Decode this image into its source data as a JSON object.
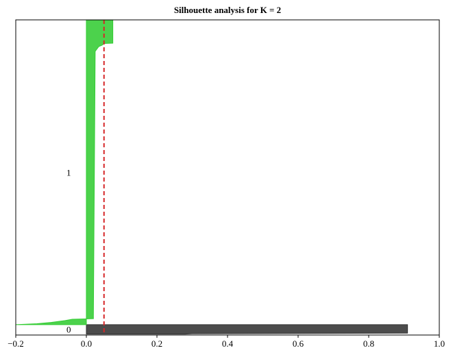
{
  "chart_data": {
    "type": "area",
    "title": "Silhouette analysis for K = 2",
    "xlabel": "",
    "ylabel": "",
    "xlim": [
      -0.2,
      1.0
    ],
    "xticks": [
      "−0.2",
      "0.0",
      "0.2",
      "0.4",
      "0.6",
      "0.8",
      "1.0"
    ],
    "xtick_values": [
      -0.2,
      0.0,
      0.2,
      0.4,
      0.6,
      0.8,
      1.0
    ],
    "ylim": [
      0,
      1000
    ],
    "grid": false,
    "average_silhouette_score": 0.05,
    "average_line_color": "#d62728",
    "average_line_style": "dashed",
    "clusters": [
      {
        "label": "0",
        "color": "#333333",
        "y_range": [
          3,
          33
        ],
        "profile": [
          {
            "y": 3,
            "x": 0.28
          },
          {
            "y": 4,
            "x": 0.3
          },
          {
            "y": 6,
            "x": 0.91
          },
          {
            "y": 33,
            "x": 0.91
          }
        ]
      },
      {
        "label": "1",
        "color": "#33cc33",
        "y_range": [
          33,
          1000
        ],
        "profile": [
          {
            "y": 33,
            "x": -0.2
          },
          {
            "y": 36,
            "x": -0.14
          },
          {
            "y": 40,
            "x": -0.1
          },
          {
            "y": 46,
            "x": -0.06
          },
          {
            "y": 50,
            "x": -0.04
          },
          {
            "y": 52,
            "x": 0.02
          },
          {
            "y": 60,
            "x": 0.02
          },
          {
            "y": 900,
            "x": 0.025
          },
          {
            "y": 915,
            "x": 0.035
          },
          {
            "y": 920,
            "x": 0.045
          },
          {
            "y": 925,
            "x": 0.05
          },
          {
            "y": 926,
            "x": 0.075
          },
          {
            "y": 1000,
            "x": 0.075
          }
        ]
      }
    ]
  }
}
